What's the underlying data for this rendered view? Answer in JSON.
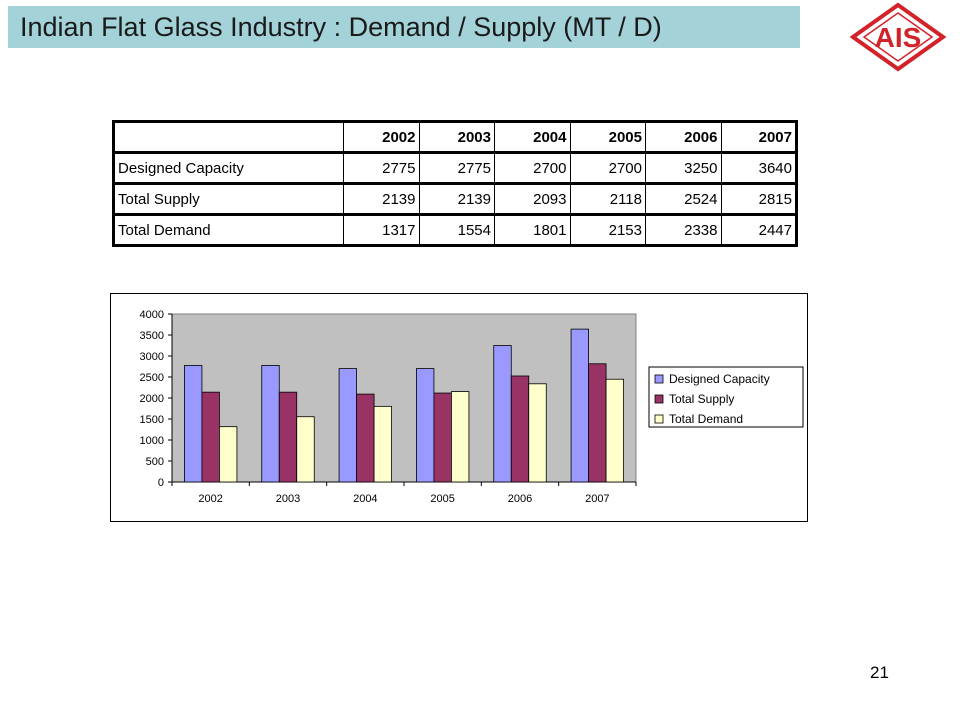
{
  "header": {
    "title": "Indian Flat Glass Industry : Demand / Supply (MT / D)"
  },
  "logo": {
    "text": "AIS",
    "color": "#d2232a"
  },
  "table": {
    "columns": [
      "2002",
      "2003",
      "2004",
      "2005",
      "2006",
      "2007"
    ],
    "rows": [
      {
        "label": "Designed Capacity",
        "values": [
          "2775",
          "2775",
          "2700",
          "2700",
          "3250",
          "3640"
        ]
      },
      {
        "label": "Total Supply",
        "values": [
          "2139",
          "2139",
          "2093",
          "2118",
          "2524",
          "2815"
        ]
      },
      {
        "label": "Total Demand",
        "values": [
          "1317",
          "1554",
          "1801",
          "2153",
          "2338",
          "2447"
        ]
      }
    ]
  },
  "chart_data": {
    "type": "bar",
    "categories": [
      "2002",
      "2003",
      "2004",
      "2005",
      "2006",
      "2007"
    ],
    "series": [
      {
        "name": "Designed Capacity",
        "values": [
          2775,
          2775,
          2700,
          2700,
          3250,
          3640
        ],
        "color": "#9999ff"
      },
      {
        "name": "Total Supply",
        "values": [
          2139,
          2139,
          2093,
          2118,
          2524,
          2815
        ],
        "color": "#993366"
      },
      {
        "name": "Total Demand",
        "values": [
          1317,
          1554,
          1801,
          2153,
          2338,
          2447
        ],
        "color": "#ffffcc"
      }
    ],
    "yticks": [
      "0",
      "500",
      "1000",
      "1500",
      "2000",
      "2500",
      "3000",
      "3500",
      "4000"
    ],
    "ylim": [
      0,
      4000
    ],
    "plot_background": "#c0c0c0",
    "legend_position": "right"
  },
  "footer": {
    "page_number": "21"
  }
}
